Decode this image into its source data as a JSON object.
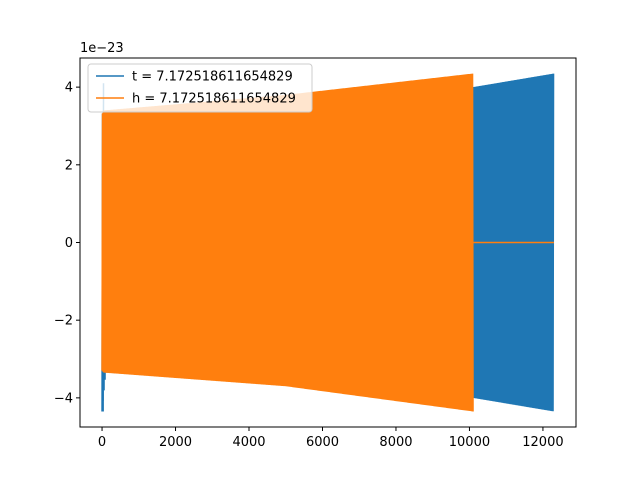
{
  "chart_data": {
    "type": "line",
    "title": "",
    "xlabel": "",
    "ylabel": "",
    "y_offset_text": "1e−23",
    "y_scale": 1e-23,
    "xlim": [
      -600,
      12900
    ],
    "ylim": [
      -4.75,
      4.75
    ],
    "x_ticks": [
      0,
      2000,
      4000,
      6000,
      8000,
      10000,
      12000
    ],
    "x_tick_labels": [
      "0",
      "2000",
      "4000",
      "6000",
      "8000",
      "10000",
      "12000"
    ],
    "y_ticks": [
      -4,
      -2,
      0,
      2,
      4
    ],
    "y_tick_labels": [
      "−4",
      "−2",
      "0",
      "2",
      "4"
    ],
    "grid": false,
    "legend_position": "upper left",
    "series": [
      {
        "name": "t = 7.172518611654829",
        "color": "#1f77b4",
        "kind": "oscillation",
        "x_range": [
          0,
          12300
        ],
        "envelope_upper": [
          [
            0,
            3.3
          ],
          [
            100,
            3.4
          ],
          [
            6000,
            3.8
          ],
          [
            10100,
            4.0
          ],
          [
            12300,
            4.35
          ]
        ],
        "envelope_lower": [
          [
            0,
            -4.35
          ],
          [
            100,
            -3.35
          ],
          [
            6000,
            -3.7
          ],
          [
            10100,
            -4.0
          ],
          [
            12300,
            -4.35
          ]
        ],
        "initial_spike": [
          [
            30,
            -4.35
          ],
          [
            40,
            4.1
          ]
        ]
      },
      {
        "name": "h = 7.172518611654829",
        "color": "#ff7f0e",
        "kind": "oscillation",
        "x_range": [
          0,
          10100
        ],
        "envelope_upper": [
          [
            0,
            3.3
          ],
          [
            50,
            3.4
          ],
          [
            5000,
            3.8
          ],
          [
            10100,
            4.35
          ]
        ],
        "envelope_lower": [
          [
            0,
            -3.3
          ],
          [
            50,
            -3.35
          ],
          [
            5000,
            -3.7
          ],
          [
            10100,
            -4.35
          ]
        ],
        "tail": [
          [
            10100,
            0
          ],
          [
            12300,
            0
          ]
        ]
      }
    ]
  }
}
